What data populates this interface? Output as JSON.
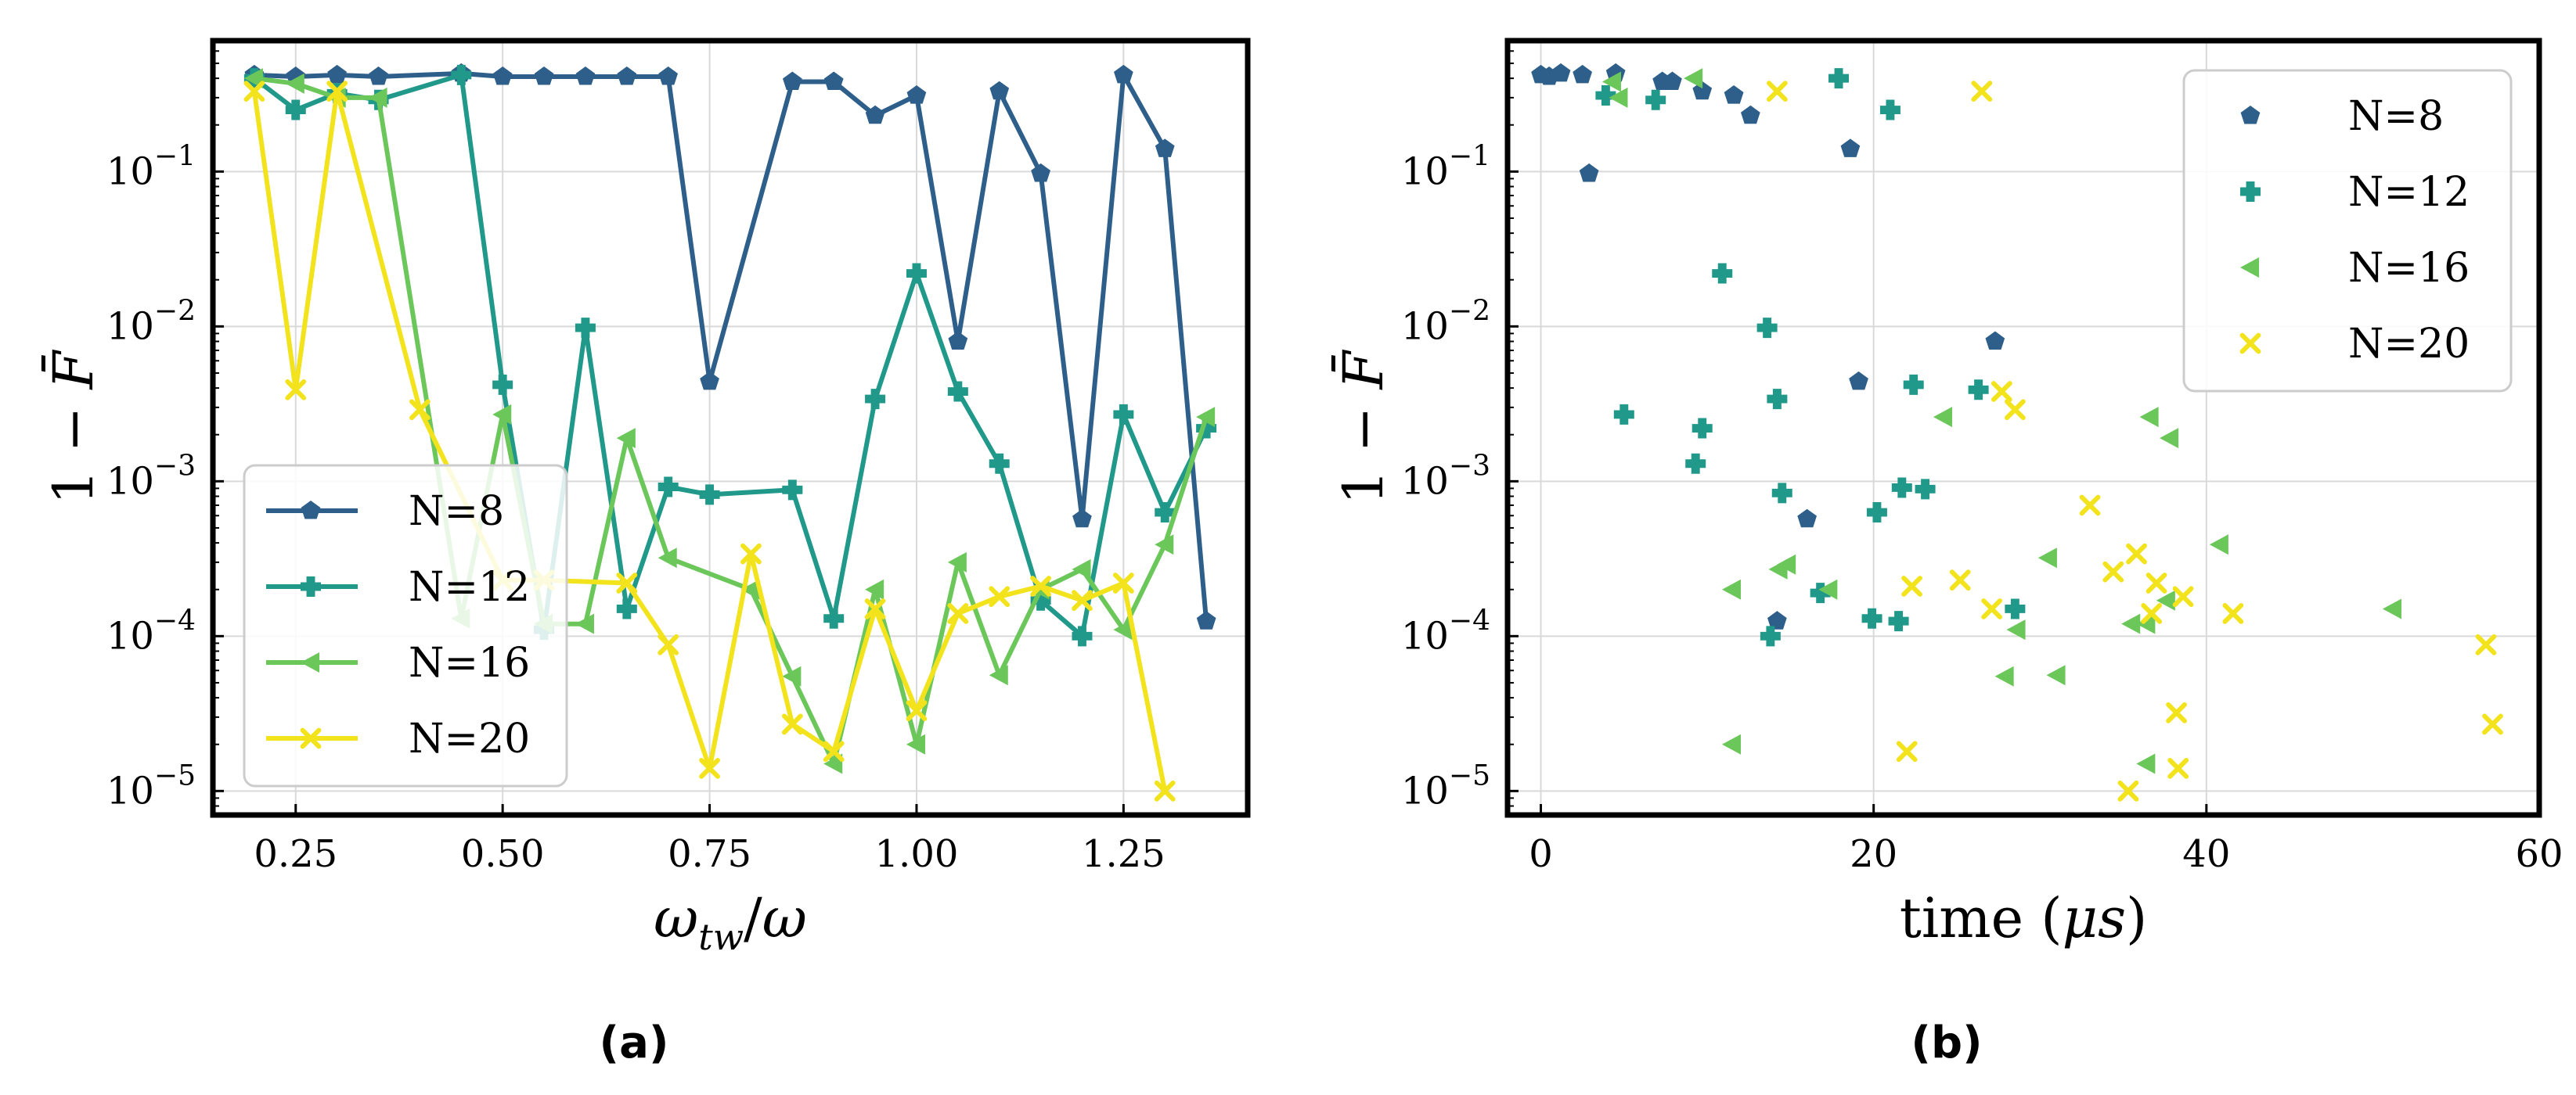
{
  "colors": {
    "N=8": "#2e5f8a",
    "N=12": "#20988a",
    "N=16": "#6cc75b",
    "N=20": "#f2e31c"
  },
  "markers": {
    "N=8": "pentagon",
    "N=12": "plus",
    "N=16": "triangle-left",
    "N=20": "x"
  },
  "chart_data": [
    {
      "type": "line",
      "caption": "(a)",
      "xlabel": "ω_tw/ω",
      "ylabel": "1 − F̄",
      "yscale": "log",
      "xlim": [
        0.15,
        1.4
      ],
      "ylim": [
        7e-06,
        0.7
      ],
      "xticks": [
        {
          "value": 0.25,
          "label": "0.25"
        },
        {
          "value": 0.5,
          "label": "0.50"
        },
        {
          "value": 0.75,
          "label": "0.75"
        },
        {
          "value": 1.0,
          "label": "1.00"
        },
        {
          "value": 1.25,
          "label": "1.25"
        }
      ],
      "yticks": [
        {
          "value": 0.1,
          "mant": "10",
          "exp": "−1"
        },
        {
          "value": 0.01,
          "mant": "10",
          "exp": "−2"
        },
        {
          "value": 0.001,
          "mant": "10",
          "exp": "−3"
        },
        {
          "value": 0.0001,
          "mant": "10",
          "exp": "−4"
        },
        {
          "value": 1e-05,
          "mant": "10",
          "exp": "−5"
        }
      ],
      "legend": {
        "position": "lower-left",
        "entries": [
          "N=8",
          "N=12",
          "N=16",
          "N=20"
        ]
      },
      "series": [
        {
          "name": "N=8",
          "points": [
            [
              0.2,
              0.42
            ],
            [
              0.25,
              0.41
            ],
            [
              0.3,
              0.42
            ],
            [
              0.35,
              0.41
            ],
            [
              0.45,
              0.43
            ],
            [
              0.5,
              0.41
            ],
            [
              0.55,
              0.41
            ],
            [
              0.6,
              0.41
            ],
            [
              0.65,
              0.41
            ],
            [
              0.7,
              0.41
            ],
            [
              0.75,
              0.0044
            ],
            [
              0.85,
              0.38
            ],
            [
              0.9,
              0.38
            ],
            [
              0.95,
              0.23
            ],
            [
              1.0,
              0.31
            ],
            [
              1.05,
              0.008
            ],
            [
              1.1,
              0.33
            ],
            [
              1.15,
              0.097
            ],
            [
              1.2,
              0.00057
            ],
            [
              1.25,
              0.42
            ],
            [
              1.3,
              0.14
            ],
            [
              1.35,
              0.000125
            ]
          ]
        },
        {
          "name": "N=12",
          "points": [
            [
              0.2,
              0.4
            ],
            [
              0.25,
              0.25
            ],
            [
              0.3,
              0.32
            ],
            [
              0.35,
              0.29
            ],
            [
              0.45,
              0.42
            ],
            [
              0.5,
              0.0042
            ],
            [
              0.55,
              0.00011
            ],
            [
              0.6,
              0.0098
            ],
            [
              0.65,
              0.00015
            ],
            [
              0.7,
              0.00092
            ],
            [
              0.75,
              0.00082
            ],
            [
              0.85,
              0.00088
            ],
            [
              0.9,
              0.00013
            ],
            [
              0.95,
              0.0034
            ],
            [
              1.0,
              0.022
            ],
            [
              1.05,
              0.0038
            ],
            [
              1.1,
              0.0013
            ],
            [
              1.15,
              0.00017
            ],
            [
              1.2,
              0.0001
            ],
            [
              1.25,
              0.0027
            ],
            [
              1.3,
              0.00063
            ],
            [
              1.35,
              0.0022
            ]
          ]
        },
        {
          "name": "N=16",
          "points": [
            [
              0.2,
              0.4
            ],
            [
              0.25,
              0.37
            ],
            [
              0.3,
              0.3
            ],
            [
              0.35,
              0.3
            ],
            [
              0.45,
              0.00013
            ],
            [
              0.5,
              0.0027
            ],
            [
              0.55,
              0.00012
            ],
            [
              0.6,
              0.00012
            ],
            [
              0.65,
              0.0019
            ],
            [
              0.7,
              0.00032
            ],
            [
              0.8,
              0.0002
            ],
            [
              0.85,
              5.5e-05
            ],
            [
              0.9,
              1.5e-05
            ],
            [
              0.95,
              0.0002
            ],
            [
              1.0,
              2e-05
            ],
            [
              1.05,
              0.0003
            ],
            [
              1.1,
              5.6e-05
            ],
            [
              1.15,
              0.0002
            ],
            [
              1.2,
              0.00027
            ],
            [
              1.25,
              0.00011
            ],
            [
              1.3,
              0.00039
            ],
            [
              1.35,
              0.0026
            ]
          ]
        },
        {
          "name": "N=20",
          "points": [
            [
              0.2,
              0.33
            ],
            [
              0.25,
              0.0039
            ],
            [
              0.3,
              0.33
            ],
            [
              0.4,
              0.0029
            ],
            [
              0.5,
              0.00023
            ],
            [
              0.55,
              0.00023
            ],
            [
              0.65,
              0.00022
            ],
            [
              0.7,
              8.8e-05
            ],
            [
              0.75,
              1.4e-05
            ],
            [
              0.8,
              0.00034
            ],
            [
              0.85,
              2.7e-05
            ],
            [
              0.9,
              1.8e-05
            ],
            [
              0.95,
              0.00015
            ],
            [
              1.0,
              3.3e-05
            ],
            [
              1.05,
              0.00014
            ],
            [
              1.1,
              0.00018
            ],
            [
              1.15,
              0.00021
            ],
            [
              1.2,
              0.00017
            ],
            [
              1.25,
              0.00022
            ],
            [
              1.3,
              1e-05
            ]
          ]
        }
      ]
    },
    {
      "type": "scatter",
      "caption": "(b)",
      "xlabel": "time (μs)",
      "ylabel": "1 − F̄",
      "yscale": "log",
      "xlim": [
        -2,
        60
      ],
      "ylim": [
        7e-06,
        0.7
      ],
      "xticks": [
        {
          "value": 0,
          "label": "0"
        },
        {
          "value": 20,
          "label": "20"
        },
        {
          "value": 40,
          "label": "40"
        },
        {
          "value": 60,
          "label": "60"
        }
      ],
      "yticks": [
        {
          "value": 0.1,
          "mant": "10",
          "exp": "−1"
        },
        {
          "value": 0.01,
          "mant": "10",
          "exp": "−2"
        },
        {
          "value": 0.001,
          "mant": "10",
          "exp": "−3"
        },
        {
          "value": 0.0001,
          "mant": "10",
          "exp": "−4"
        },
        {
          "value": 1e-05,
          "mant": "10",
          "exp": "−5"
        }
      ],
      "legend": {
        "position": "top-right",
        "entries": [
          "N=8",
          "N=12",
          "N=16",
          "N=20"
        ]
      },
      "series": [
        {
          "name": "N=8",
          "points": [
            [
              0,
              0.42
            ],
            [
              0.5,
              0.41
            ],
            [
              1.2,
              0.43
            ],
            [
              2.5,
              0.42
            ],
            [
              2.9,
              0.097
            ],
            [
              4.5,
              0.43
            ],
            [
              7.3,
              0.38
            ],
            [
              7.9,
              0.38
            ],
            [
              9.7,
              0.33
            ],
            [
              11.6,
              0.31
            ],
            [
              12.6,
              0.23
            ],
            [
              14.2,
              0.000125
            ],
            [
              16,
              0.00057
            ],
            [
              18.6,
              0.14
            ],
            [
              19.1,
              0.0044
            ],
            [
              27.3,
              0.008
            ]
          ]
        },
        {
          "name": "N=12",
          "points": [
            [
              3.9,
              0.31
            ],
            [
              5,
              0.0027
            ],
            [
              6.9,
              0.29
            ],
            [
              9.3,
              0.0013
            ],
            [
              9.7,
              0.0022
            ],
            [
              10.9,
              0.022
            ],
            [
              13.6,
              0.0098
            ],
            [
              13.8,
              0.0001
            ],
            [
              14.2,
              0.0034
            ],
            [
              14.5,
              0.00084
            ],
            [
              16.8,
              0.00019
            ],
            [
              17.9,
              0.4
            ],
            [
              19.9,
              0.00013
            ],
            [
              20.2,
              0.00063
            ],
            [
              21,
              0.25
            ],
            [
              21.5,
              0.000125
            ],
            [
              21.7,
              0.00091
            ],
            [
              22.4,
              0.0042
            ],
            [
              23.1,
              0.00089
            ],
            [
              26.3,
              0.0039
            ],
            [
              28.5,
              0.00015
            ]
          ]
        },
        {
          "name": "N=16",
          "points": [
            [
              4.3,
              0.38
            ],
            [
              4.7,
              0.3
            ],
            [
              9.2,
              0.4
            ],
            [
              11.5,
              0.0002
            ],
            [
              11.5,
              2e-05
            ],
            [
              14.3,
              0.00027
            ],
            [
              14.8,
              0.00029
            ],
            [
              17.3,
              0.0002
            ],
            [
              24.2,
              0.0026
            ],
            [
              27.9,
              5.5e-05
            ],
            [
              28.6,
              0.00011
            ],
            [
              30.5,
              0.00032
            ],
            [
              31,
              5.6e-05
            ],
            [
              35.5,
              0.00012
            ],
            [
              36.4,
              1.5e-05
            ],
            [
              36.4,
              0.00012
            ],
            [
              36.6,
              0.0026
            ],
            [
              37.6,
              0.00017
            ],
            [
              37.8,
              0.0019
            ],
            [
              40.8,
              0.00039
            ],
            [
              51.2,
              0.00015
            ]
          ]
        },
        {
          "name": "N=20",
          "points": [
            [
              14.2,
              0.33
            ],
            [
              22,
              1.8e-05
            ],
            [
              22.3,
              0.00021
            ],
            [
              25.2,
              0.00023
            ],
            [
              26.5,
              0.33
            ],
            [
              27.1,
              0.00015
            ],
            [
              27.7,
              0.0038
            ],
            [
              28.5,
              0.0029
            ],
            [
              33,
              0.0007
            ],
            [
              34.4,
              0.00026
            ],
            [
              35.3,
              1e-05
            ],
            [
              35.8,
              0.00034
            ],
            [
              36.7,
              0.00014
            ],
            [
              37,
              0.00022
            ],
            [
              38.2,
              3.2e-05
            ],
            [
              38.3,
              1.4e-05
            ],
            [
              38.6,
              0.00018
            ],
            [
              41.6,
              0.00014
            ],
            [
              56.8,
              8.8e-05
            ],
            [
              57.2,
              2.7e-05
            ]
          ]
        }
      ]
    }
  ]
}
